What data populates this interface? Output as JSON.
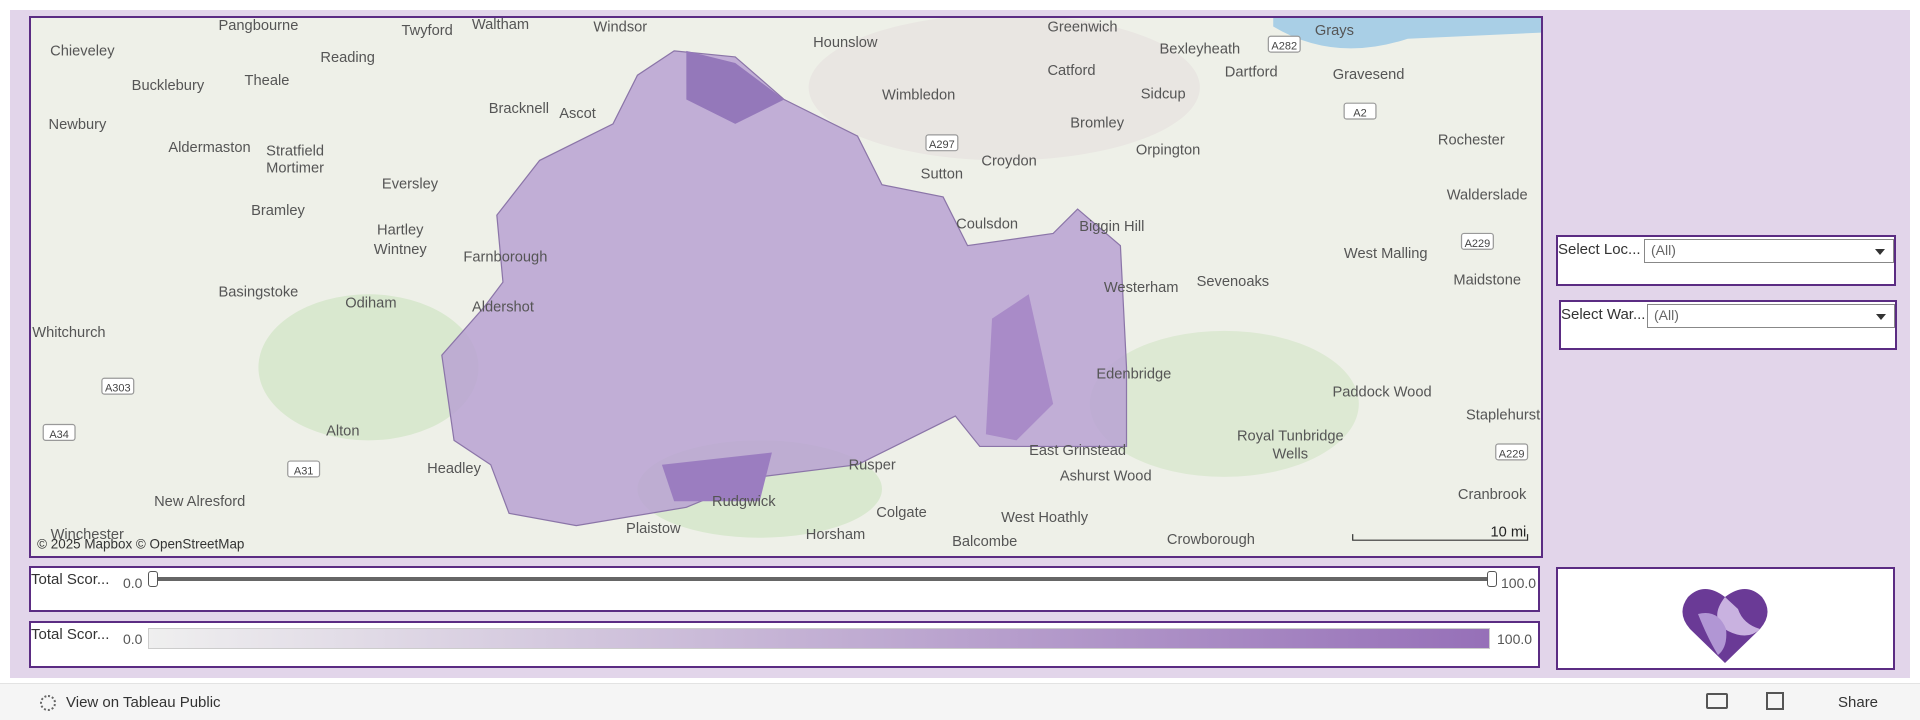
{
  "map": {
    "labels": [
      "Pangbourne",
      "Twyford",
      "Waltham",
      "Windsor",
      "Greenwich",
      "Grays",
      "Chieveley",
      "Reading",
      "Hounslow",
      "Catford",
      "Bexleyheath",
      "Dartford",
      "Gravesend",
      "A282",
      "Bucklebury",
      "Theale",
      "Wimbledon",
      "Bracknell",
      "Ascot",
      "Sidcup",
      "Newbury",
      "Bromley",
      "A2",
      "Rochester",
      "Aldermaston",
      "Stratfield",
      "Mortimer",
      "A297",
      "Croydon",
      "Orpington",
      "Eversley",
      "Sutton",
      "Walderslade",
      "Bramley",
      "Coulsdon",
      "Biggin Hill",
      "Hartley",
      "Wintney",
      "Farnborough",
      "West Malling",
      "A229",
      "Basingstoke",
      "Odiham",
      "Aldershot",
      "Westerham",
      "Sevenoaks",
      "Maidstone",
      "Whitchurch",
      "Edenbridge",
      "Paddock Wood",
      "A303",
      "Staplehurst",
      "A34",
      "Alton",
      "Royal Tunbridge",
      "Wells",
      "A229",
      "East Grinstead",
      "Headley",
      "A31",
      "Rusper",
      "Ashurst Wood",
      "New Alresford",
      "Rudgwick",
      "Cranbrook",
      "Colgate",
      "West Hoathly",
      "Plaistow",
      "Horsham",
      "Crowborough",
      "Balcombe",
      "Winchester"
    ],
    "attribution": "© 2025 Mapbox © OpenStreetMap",
    "scale": "10 mi"
  },
  "filters": [
    {
      "label": "Select Loc...",
      "value": "(All)"
    },
    {
      "label": "Select War...",
      "value": "(All)"
    }
  ],
  "slider": {
    "label": "Total Scor...",
    "min": "0.0",
    "max": "100.0"
  },
  "legend": {
    "label": "Total Scor...",
    "min": "0.0",
    "max": "100.0"
  },
  "toolbar": {
    "link": "View on Tableau Public",
    "share": "Share"
  }
}
